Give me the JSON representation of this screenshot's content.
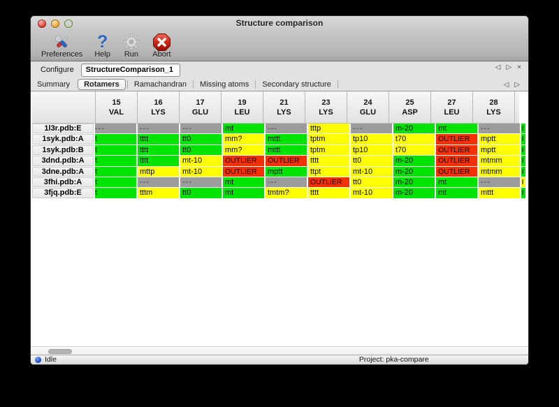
{
  "window": {
    "title": "Structure comparison"
  },
  "toolbar": {
    "items": [
      {
        "label": "Preferences"
      },
      {
        "label": "Help"
      },
      {
        "label": "Run"
      },
      {
        "label": "Abort"
      }
    ]
  },
  "configure": {
    "label": "Configure",
    "value": "StructureComparison_1"
  },
  "panel_controls": {
    "prev": "◁",
    "next": "▷",
    "close": "×"
  },
  "tab_controls": {
    "prev": "◁",
    "next": "▷"
  },
  "tabs": [
    {
      "label": "Summary",
      "selected": false
    },
    {
      "label": "Rotamers",
      "selected": true
    },
    {
      "label": "Ramachandran",
      "selected": false
    },
    {
      "label": "Missing atoms",
      "selected": false
    },
    {
      "label": "Secondary structure",
      "selected": false
    }
  ],
  "legend_colors": {
    "favored": "#00e300",
    "allowed": "#ffff00",
    "outlier": "#f23000",
    "missing": "#9c9c9c"
  },
  "table": {
    "columns": [
      {
        "number": "15",
        "residue": "VAL"
      },
      {
        "number": "16",
        "residue": "LYS"
      },
      {
        "number": "17",
        "residue": "GLU"
      },
      {
        "number": "19",
        "residue": "LEU"
      },
      {
        "number": "21",
        "residue": "LYS"
      },
      {
        "number": "23",
        "residue": "LYS"
      },
      {
        "number": "24",
        "residue": "GLU"
      },
      {
        "number": "25",
        "residue": "ASP"
      },
      {
        "number": "27",
        "residue": "LEU"
      },
      {
        "number": "28",
        "residue": "LYS"
      }
    ],
    "rows": [
      {
        "label": "1l3r.pdb:E",
        "partial": "favored",
        "cells": [
          {
            "t": "---",
            "s": "missing",
            "nopad": true
          },
          {
            "t": "---",
            "s": "missing"
          },
          {
            "t": "---",
            "s": "missing"
          },
          {
            "t": "mt",
            "s": "favored"
          },
          {
            "t": "---",
            "s": "missing"
          },
          {
            "t": "tttp",
            "s": "allowed"
          },
          {
            "t": "---",
            "s": "missing"
          },
          {
            "t": "m-20",
            "s": "favored"
          },
          {
            "t": "mt",
            "s": "favored"
          },
          {
            "t": "---",
            "s": "missing"
          }
        ]
      },
      {
        "label": "1syk.pdb:A",
        "partial": "favored",
        "cells": [
          {
            "t": "t",
            "s": "favored",
            "clip": true
          },
          {
            "t": "tttt",
            "s": "favored"
          },
          {
            "t": "tt0",
            "s": "favored"
          },
          {
            "t": "mm?",
            "s": "allowed"
          },
          {
            "t": "mttt",
            "s": "favored"
          },
          {
            "t": "tptm",
            "s": "allowed"
          },
          {
            "t": "tp10",
            "s": "allowed"
          },
          {
            "t": "t70",
            "s": "allowed"
          },
          {
            "t": "OUTLIER",
            "s": "outlier"
          },
          {
            "t": "mptt",
            "s": "allowed"
          }
        ]
      },
      {
        "label": "1syk.pdb:B",
        "partial": "favored",
        "cells": [
          {
            "t": "t",
            "s": "favored",
            "clip": true
          },
          {
            "t": "tttt",
            "s": "favored"
          },
          {
            "t": "tt0",
            "s": "favored"
          },
          {
            "t": "mm?",
            "s": "allowed"
          },
          {
            "t": "mttt",
            "s": "favored"
          },
          {
            "t": "tptm",
            "s": "allowed"
          },
          {
            "t": "tp10",
            "s": "allowed"
          },
          {
            "t": "t70",
            "s": "allowed"
          },
          {
            "t": "OUTLIER",
            "s": "outlier"
          },
          {
            "t": "mptt",
            "s": "allowed"
          }
        ]
      },
      {
        "label": "3dnd.pdb:A",
        "partial": "favored",
        "cells": [
          {
            "t": "t",
            "s": "favored",
            "clip": true
          },
          {
            "t": "tttt",
            "s": "favored"
          },
          {
            "t": "mt-10",
            "s": "allowed"
          },
          {
            "t": "OUTLIER",
            "s": "outlier"
          },
          {
            "t": "OUTLIER",
            "s": "outlier"
          },
          {
            "t": "tttt",
            "s": "allowed"
          },
          {
            "t": "tt0",
            "s": "allowed"
          },
          {
            "t": "m-20",
            "s": "favored"
          },
          {
            "t": "OUTLIER",
            "s": "outlier"
          },
          {
            "t": "mtmm",
            "s": "allowed"
          }
        ]
      },
      {
        "label": "3dne.pdb:A",
        "partial": "favored",
        "cells": [
          {
            "t": "t",
            "s": "favored",
            "clip": true
          },
          {
            "t": "mttp",
            "s": "allowed"
          },
          {
            "t": "mt-10",
            "s": "allowed"
          },
          {
            "t": "OUTLIER",
            "s": "outlier"
          },
          {
            "t": "mptt",
            "s": "favored"
          },
          {
            "t": "ttpt",
            "s": "allowed"
          },
          {
            "t": "mt-10",
            "s": "allowed"
          },
          {
            "t": "m-20",
            "s": "favored"
          },
          {
            "t": "OUTLIER",
            "s": "outlier"
          },
          {
            "t": "mtmm",
            "s": "allowed"
          }
        ]
      },
      {
        "label": "3fhi.pdb:A",
        "partial": "allowed",
        "cells": [
          {
            "t": "t",
            "s": "favored",
            "clip": true
          },
          {
            "t": "---",
            "s": "missing"
          },
          {
            "t": "---",
            "s": "missing"
          },
          {
            "t": "mt",
            "s": "favored"
          },
          {
            "t": "---",
            "s": "missing"
          },
          {
            "t": "OUTLIER",
            "s": "outlier"
          },
          {
            "t": "tt0",
            "s": "allowed"
          },
          {
            "t": "m-20",
            "s": "favored"
          },
          {
            "t": "mt",
            "s": "favored"
          },
          {
            "t": "---",
            "s": "missing"
          }
        ]
      },
      {
        "label": "3fjq.pdb:E",
        "partial": "favored",
        "cells": [
          {
            "t": "t",
            "s": "favored",
            "clip": true
          },
          {
            "t": "tttm",
            "s": "allowed"
          },
          {
            "t": "tt0",
            "s": "favored"
          },
          {
            "t": "mt",
            "s": "favored"
          },
          {
            "t": "tmtm?",
            "s": "allowed"
          },
          {
            "t": "tttt",
            "s": "allowed"
          },
          {
            "t": "mt-10",
            "s": "allowed"
          },
          {
            "t": "m-20",
            "s": "favored"
          },
          {
            "t": "mt",
            "s": "favored"
          },
          {
            "t": "mttt",
            "s": "allowed"
          }
        ]
      }
    ]
  },
  "statusbar": {
    "status": "Idle",
    "project": "Project: pka-compare"
  }
}
